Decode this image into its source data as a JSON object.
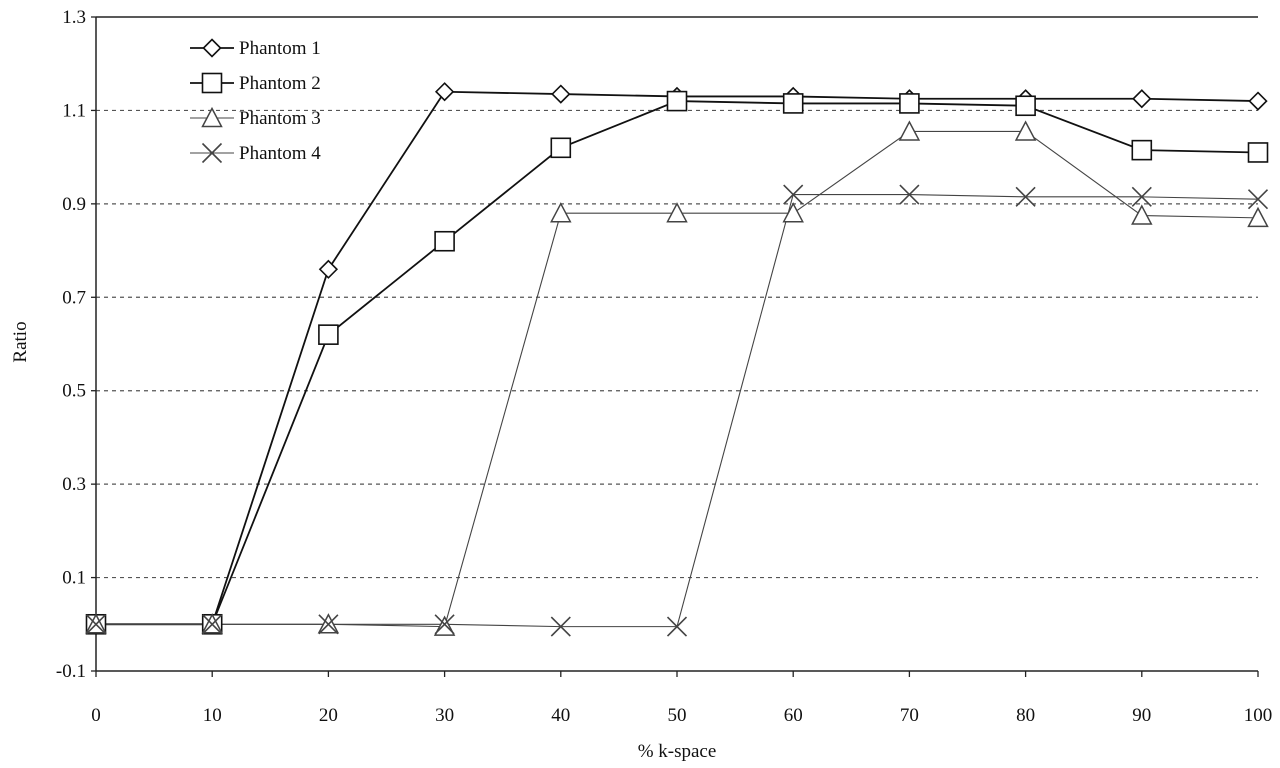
{
  "chart_data": {
    "type": "line",
    "title": "",
    "xlabel": "% k-space",
    "ylabel": "Ratio",
    "x": [
      0,
      10,
      20,
      30,
      40,
      50,
      60,
      70,
      80,
      90,
      100
    ],
    "x_ticks": [
      "0",
      "10",
      "20",
      "30",
      "40",
      "50",
      "60",
      "70",
      "80",
      "90",
      "100"
    ],
    "y_ticks": [
      "-0.1",
      "0.1",
      "0.3",
      "0.5",
      "0.7",
      "0.9",
      "1.1",
      "1.3"
    ],
    "xlim": [
      0,
      100
    ],
    "ylim": [
      -0.1,
      1.3
    ],
    "grid": "horizontal dashed",
    "legend_position": "top-left",
    "series": [
      {
        "name": "Phantom 1",
        "marker": "diamond",
        "color": "#111111",
        "values": [
          0.0,
          0.0,
          0.76,
          1.14,
          1.135,
          1.13,
          1.13,
          1.125,
          1.125,
          1.125,
          1.12
        ]
      },
      {
        "name": "Phantom 2",
        "marker": "square",
        "color": "#111111",
        "values": [
          0.0,
          0.0,
          0.62,
          0.82,
          1.02,
          1.12,
          1.115,
          1.115,
          1.11,
          1.015,
          1.01
        ]
      },
      {
        "name": "Phantom 3",
        "marker": "triangle",
        "color": "#444444",
        "values": [
          0.0,
          0.0,
          0.0,
          -0.005,
          0.88,
          0.88,
          0.88,
          1.055,
          1.055,
          0.875,
          0.87
        ]
      },
      {
        "name": "Phantom 4",
        "marker": "x",
        "color": "#444444",
        "values": [
          0.0,
          0.0,
          0.0,
          0.0,
          -0.005,
          -0.005,
          0.92,
          0.92,
          0.915,
          0.915,
          0.91
        ]
      }
    ]
  }
}
